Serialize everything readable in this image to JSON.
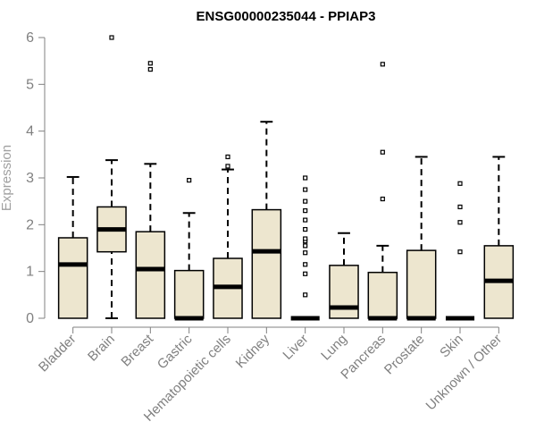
{
  "chart_data": {
    "type": "boxplot",
    "title": "ENSG00000235044 - PPIAP3",
    "ylabel": "Expression",
    "xlabel": "",
    "ylim": [
      0,
      6
    ],
    "yticks": [
      0,
      1,
      2,
      3,
      4,
      5,
      6
    ],
    "grid": false,
    "legend": "none",
    "box_fill": "#ede6cf",
    "axis_color": "#808080",
    "categories": [
      "Bladder",
      "Brain",
      "Breast",
      "Gastric",
      "Hematopoietic cells",
      "Kidney",
      "Liver",
      "Lung",
      "Pancreas",
      "Prostate",
      "Skin",
      "Unknown / Other"
    ],
    "boxes": [
      {
        "category": "Bladder",
        "min": 0,
        "q1": 0,
        "median": 1.15,
        "q3": 1.72,
        "max": 3.02,
        "outliers": []
      },
      {
        "category": "Brain",
        "min": 0,
        "q1": 1.42,
        "median": 1.9,
        "q3": 2.38,
        "max": 3.38,
        "outliers": [
          6.0
        ]
      },
      {
        "category": "Breast",
        "min": 0,
        "q1": 0,
        "median": 1.05,
        "q3": 1.85,
        "max": 3.3,
        "outliers": [
          5.32,
          5.45
        ]
      },
      {
        "category": "Gastric",
        "min": 0,
        "q1": 0,
        "median": 0,
        "q3": 1.02,
        "max": 2.25,
        "outliers": [
          2.95
        ]
      },
      {
        "category": "Hematopoietic cells",
        "min": 0,
        "q1": 0,
        "median": 0.67,
        "q3": 1.28,
        "max": 3.18,
        "outliers": [
          3.25,
          3.45
        ]
      },
      {
        "category": "Kidney",
        "min": 0,
        "q1": 0,
        "median": 1.43,
        "q3": 2.32,
        "max": 4.2,
        "outliers": []
      },
      {
        "category": "Liver",
        "min": 0,
        "q1": 0,
        "median": 0,
        "q3": 0,
        "max": 0,
        "outliers": [
          0.5,
          0.95,
          1.15,
          1.4,
          1.55,
          1.65,
          1.7,
          1.9,
          2.1,
          2.3,
          2.5,
          2.75,
          3.0
        ]
      },
      {
        "category": "Lung",
        "min": 0,
        "q1": 0,
        "median": 0.23,
        "q3": 1.13,
        "max": 1.82,
        "outliers": []
      },
      {
        "category": "Pancreas",
        "min": 0,
        "q1": 0,
        "median": 0,
        "q3": 0.98,
        "max": 1.55,
        "outliers": [
          2.55,
          3.55,
          5.43
        ]
      },
      {
        "category": "Prostate",
        "min": 0,
        "q1": 0,
        "median": 0,
        "q3": 1.45,
        "max": 3.45,
        "outliers": []
      },
      {
        "category": "Skin",
        "min": 0,
        "q1": 0,
        "median": 0,
        "q3": 0,
        "max": 0,
        "outliers": [
          1.42,
          2.05,
          2.38,
          2.88
        ]
      },
      {
        "category": "Unknown / Other",
        "min": 0,
        "q1": 0,
        "median": 0.8,
        "q3": 1.55,
        "max": 3.45,
        "outliers": []
      }
    ]
  }
}
